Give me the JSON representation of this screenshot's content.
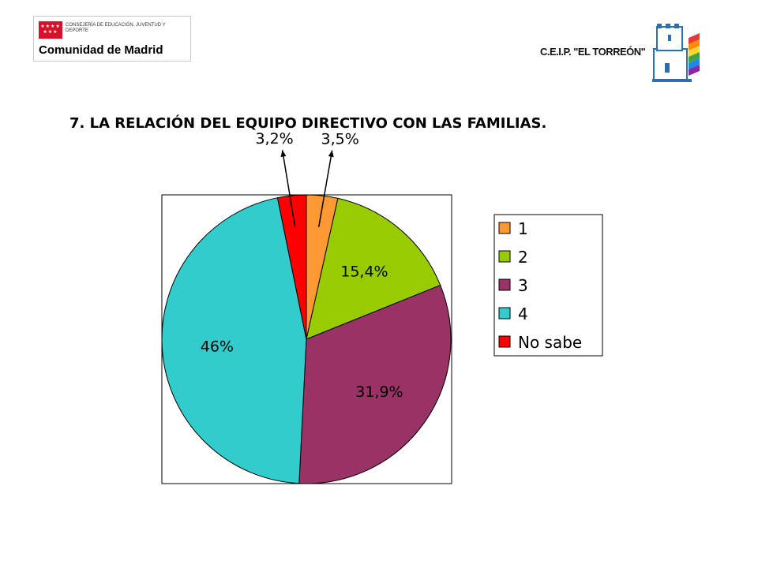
{
  "logos": {
    "madrid_small_text": "CONSEJERÍA DE EDUCACIÓN, JUVENTUD Y DEPORTE",
    "madrid_name": "Comunidad de Madrid",
    "school_name": "C.E.I.P. \"EL TORREÓN\""
  },
  "chart_data": {
    "type": "pie",
    "title": "7. LA RELACIÓN DEL EQUIPO DIRECTIVO CON LAS FAMILIAS.",
    "legend_position": "right",
    "slices": [
      {
        "name": "1",
        "value": 3.5,
        "label": "3,5%",
        "color": "#ff9933"
      },
      {
        "name": "2",
        "value": 15.4,
        "label": "15,4%",
        "color": "#99cc00"
      },
      {
        "name": "3",
        "value": 31.9,
        "label": "31,9%",
        "color": "#993366"
      },
      {
        "name": "4",
        "value": 46.0,
        "label": "46%",
        "color": "#33cccc"
      },
      {
        "name": "No sabe",
        "value": 3.2,
        "label": "3,2%",
        "color": "#ff0000"
      }
    ]
  }
}
